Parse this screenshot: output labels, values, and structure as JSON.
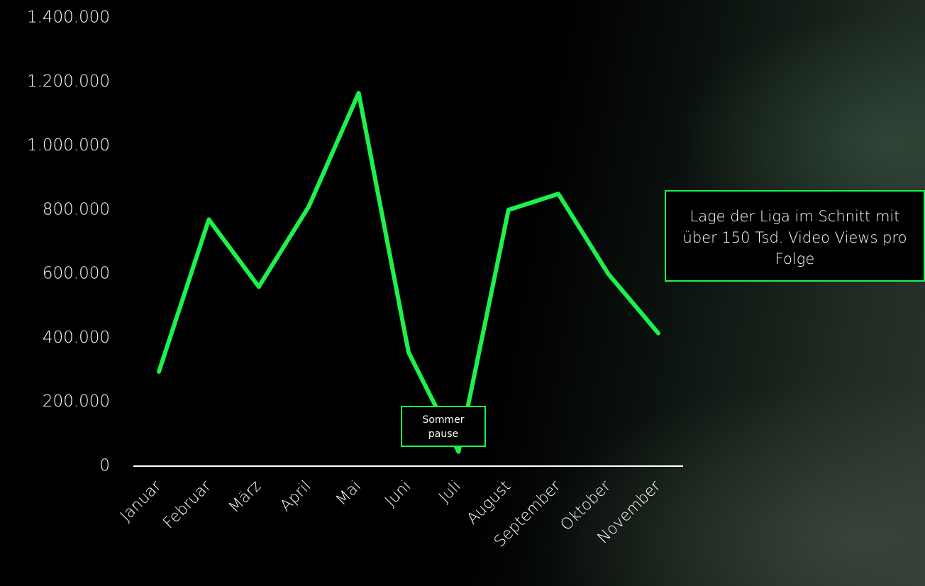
{
  "chart_data": {
    "type": "line",
    "categories": [
      "Januar",
      "Februar",
      "März",
      "April",
      "Mai",
      "Juni",
      "Juli",
      "August",
      "September",
      "Oktober",
      "November"
    ],
    "series": [
      {
        "color": "#1cf24c",
        "values": [
          295000,
          770000,
          560000,
          810000,
          1165000,
          355000,
          45000,
          800000,
          850000,
          600000,
          415000
        ]
      }
    ],
    "ylim": [
      0,
      1400000
    ],
    "yticks": [
      0,
      {
        "value": 200000,
        "label": "200.000"
      },
      {
        "value": 400000,
        "label": "400.000"
      },
      {
        "value": 600000,
        "label": "600.000"
      },
      {
        "value": 800000,
        "label": "800.000"
      },
      {
        "value": 1000000,
        "label": "1.000.000"
      },
      {
        "value": 1200000,
        "label": "1.200.000"
      },
      {
        "value": 1400000,
        "label": "1.400.000"
      }
    ],
    "grid": false,
    "annotations": [
      "Lage der Liga im Schnitt mit über 150 Tsd. Video Views pro Folge",
      "Sommer pause"
    ]
  }
}
